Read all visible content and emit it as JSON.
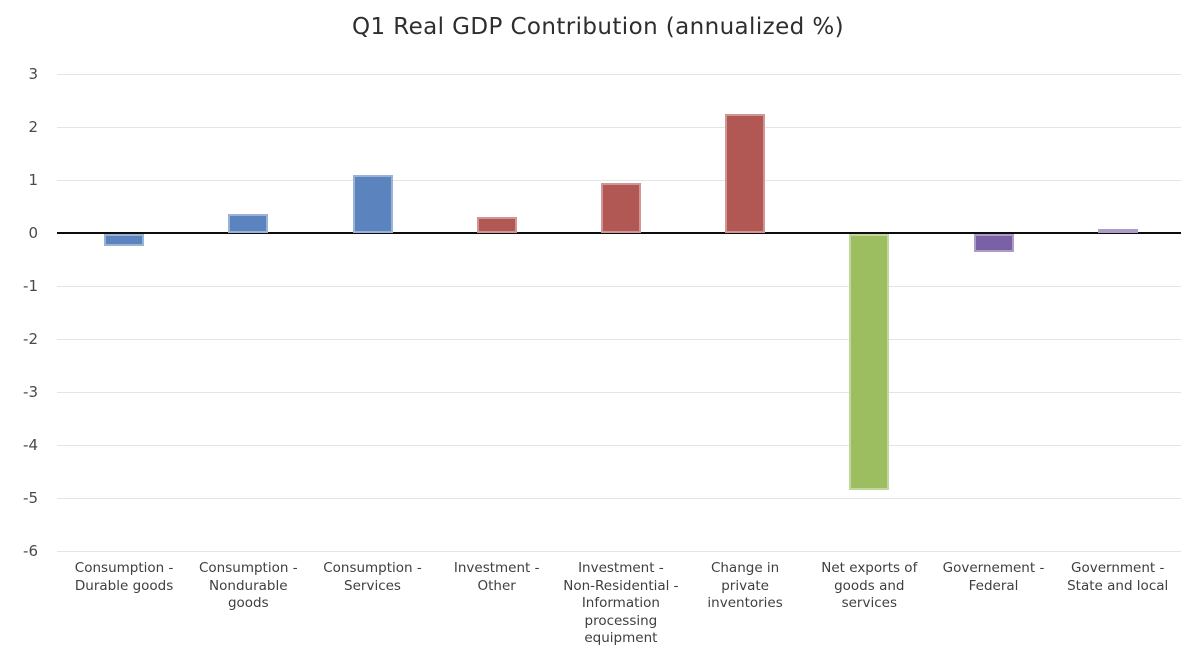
{
  "chart_data": {
    "type": "bar",
    "title": "Q1 Real GDP Contribution (annualized %)",
    "xlabel": "",
    "ylabel": "",
    "ylim": [
      -6,
      3
    ],
    "yticks": [
      3,
      2,
      1,
      0,
      -1,
      -2,
      -3,
      -4,
      -5,
      -6
    ],
    "grid": true,
    "legend_position": "none",
    "categories": [
      "Consumption - Durable goods",
      "Consumption - Nondurable goods",
      "Consumption - Services",
      "Investment - Other",
      "Investment - Non-Residential - Information processing equipment",
      "Change in private inventories",
      "Net exports of goods and services",
      "Governement - Federal",
      "Government - State and local"
    ],
    "category_display_lines": [
      [
        "Consumption -",
        "Durable goods"
      ],
      [
        "Consumption -",
        "Nondurable",
        "goods"
      ],
      [
        "Consumption -",
        "Services"
      ],
      [
        "Investment -",
        "Other"
      ],
      [
        "Investment -",
        "Non-Residential -",
        "Information",
        "processing",
        "equipment"
      ],
      [
        "Change in",
        "private",
        "inventories"
      ],
      [
        "Net exports of",
        "goods and",
        "services"
      ],
      [
        "Governement -",
        "Federal"
      ],
      [
        "Government -",
        "State and local"
      ]
    ],
    "values": [
      -0.25,
      0.35,
      1.1,
      0.3,
      0.95,
      2.25,
      -4.85,
      -0.35,
      0.07
    ],
    "bar_colors": [
      "#5b83bd",
      "#5b83bd",
      "#5b83bd",
      "#b15854",
      "#b15854",
      "#b15854",
      "#9dbd61",
      "#7a60a4",
      "#7a60a4"
    ],
    "palette": {
      "consumption_blue": "#5b83bd",
      "investment_red": "#b15854",
      "net_exports_green": "#9dbd61",
      "government_purple": "#7a60a4"
    },
    "ui_colors": {
      "background": "#ffffff",
      "gridline": "#e4e4e4",
      "zero_axis": "#0d0d0d",
      "title_text": "#2e2e2e",
      "tick_text": "#4a4a4a",
      "category_text": "#3f3f3f"
    }
  }
}
